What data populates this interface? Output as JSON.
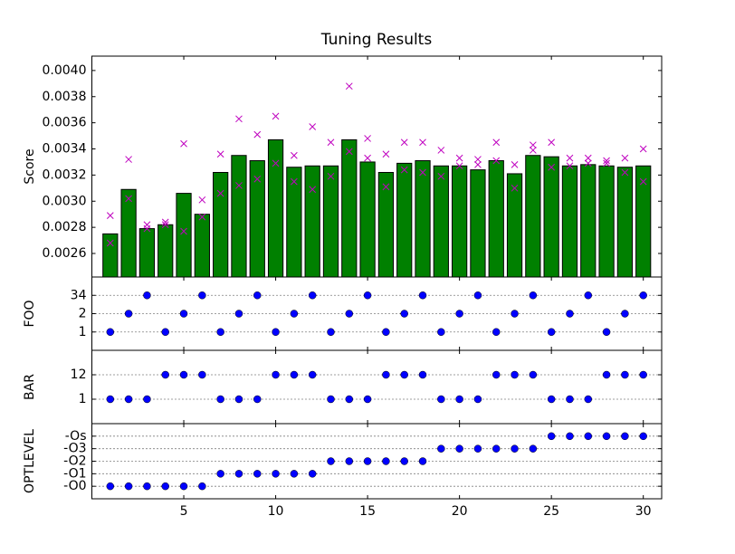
{
  "chart_data": [
    {
      "type": "bar",
      "title": "Tuning Results",
      "ylabel": "Score",
      "x": [
        1,
        2,
        3,
        4,
        5,
        6,
        7,
        8,
        9,
        10,
        11,
        12,
        13,
        14,
        15,
        16,
        17,
        18,
        19,
        20,
        21,
        22,
        23,
        24,
        25,
        26,
        27,
        28,
        29,
        30
      ],
      "values": [
        0.00275,
        0.00309,
        0.00279,
        0.00282,
        0.00306,
        0.0029,
        0.00322,
        0.00335,
        0.00331,
        0.00347,
        0.00326,
        0.00327,
        0.00327,
        0.00347,
        0.0033,
        0.00322,
        0.00329,
        0.00331,
        0.00327,
        0.00327,
        0.00324,
        0.00331,
        0.00321,
        0.00335,
        0.00334,
        0.00327,
        0.00328,
        0.00327,
        0.00326,
        0.00327
      ],
      "color": "#008000",
      "points": {
        "x": [
          1,
          1,
          2,
          2,
          3,
          3,
          4,
          4,
          5,
          5,
          6,
          6,
          7,
          7,
          8,
          8,
          9,
          9,
          10,
          10,
          11,
          11,
          12,
          12,
          13,
          13,
          14,
          14,
          15,
          15,
          16,
          16,
          17,
          17,
          18,
          18,
          19,
          19,
          20,
          20,
          21,
          21,
          22,
          22,
          23,
          23,
          24,
          24,
          25,
          25,
          26,
          26,
          27,
          27,
          28,
          28,
          29,
          29,
          30,
          30
        ],
        "y": [
          0.00289,
          0.00268,
          0.00332,
          0.00302,
          0.00282,
          0.00279,
          0.00284,
          0.00282,
          0.00344,
          0.00277,
          0.00301,
          0.00288,
          0.00336,
          0.00306,
          0.00363,
          0.00312,
          0.00351,
          0.00317,
          0.00365,
          0.00329,
          0.00335,
          0.00315,
          0.00357,
          0.00309,
          0.00345,
          0.00319,
          0.00388,
          0.00338,
          0.00348,
          0.00333,
          0.00336,
          0.00311,
          0.00345,
          0.00324,
          0.00345,
          0.00322,
          0.00339,
          0.00319,
          0.00333,
          0.00327,
          0.00332,
          0.00328,
          0.00345,
          0.00331,
          0.00328,
          0.0031,
          0.00343,
          0.00339,
          0.00345,
          0.00326,
          0.00333,
          0.00327,
          0.00333,
          0.00329,
          0.00331,
          0.00329,
          0.00333,
          0.00322,
          0.0034,
          0.00315
        ],
        "color": "#bf00bf"
      },
      "xlim": [
        0,
        31
      ],
      "ylim": [
        0.00242,
        0.00411
      ],
      "yticks": [
        0.0026,
        0.0028,
        {
          "value": 0.003,
          "label": "0.0030"
        },
        0.0032,
        0.0034,
        0.0036,
        0.0038,
        {
          "value": 0.004,
          "label": "0.0040"
        }
      ],
      "grid": false
    },
    {
      "type": "scatter",
      "ylabel": "FOO",
      "color": "#0000ff",
      "values": [
        0,
        1,
        2,
        0,
        1,
        2,
        0,
        1,
        2,
        0,
        1,
        2,
        0,
        1,
        2,
        0,
        1,
        2,
        0,
        1,
        2,
        0,
        1,
        2,
        0,
        1,
        2,
        0,
        1,
        2
      ],
      "xlim": [
        0,
        31
      ],
      "ylim": [
        -1,
        3
      ],
      "yticks": [
        {
          "value": 0,
          "label": "1"
        },
        {
          "value": 1,
          "label": "2"
        },
        {
          "value": 2,
          "label": "34"
        }
      ],
      "grid": true
    },
    {
      "type": "scatter",
      "ylabel": "BAR",
      "color": "#0000ff",
      "values": [
        0,
        0,
        0,
        1,
        1,
        1,
        0,
        0,
        0,
        1,
        1,
        1,
        0,
        0,
        0,
        1,
        1,
        1,
        0,
        0,
        0,
        1,
        1,
        1,
        0,
        0,
        0,
        1,
        1,
        1
      ],
      "xlim": [
        0,
        31
      ],
      "ylim": [
        -1,
        2
      ],
      "yticks": [
        {
          "value": 0,
          "label": "1"
        },
        {
          "value": 1,
          "label": "12"
        }
      ],
      "grid": true
    },
    {
      "type": "scatter",
      "ylabel": "OPTLEVEL",
      "color": "#0000ff",
      "values": [
        0,
        0,
        0,
        0,
        0,
        0,
        1,
        1,
        1,
        1,
        1,
        1,
        2,
        2,
        2,
        2,
        2,
        2,
        3,
        3,
        3,
        3,
        3,
        3,
        4,
        4,
        4,
        4,
        4,
        4
      ],
      "xlim": [
        0,
        31
      ],
      "ylim": [
        -1,
        5
      ],
      "yticks": [
        {
          "value": 0,
          "label": "-O0"
        },
        {
          "value": 1,
          "label": "-O1"
        },
        {
          "value": 2,
          "label": "-O2"
        },
        {
          "value": 3,
          "label": "-O3"
        },
        {
          "value": 4,
          "label": "-Os"
        }
      ],
      "xticks": [
        5,
        10,
        15,
        20,
        25,
        30
      ],
      "grid": true
    }
  ]
}
